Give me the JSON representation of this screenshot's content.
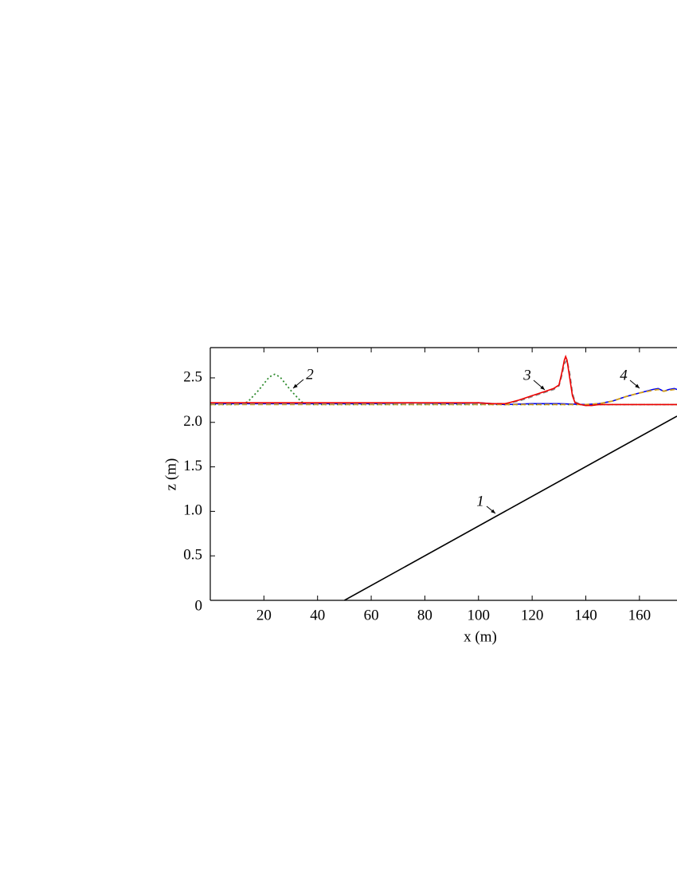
{
  "chart_data": {
    "type": "line",
    "xlabel": "x (m)",
    "ylabel": "z (m)",
    "xlim": [
      0,
      174
    ],
    "ylim": [
      0,
      2.84
    ],
    "xticks": [
      20,
      40,
      60,
      80,
      100,
      120,
      140,
      160
    ],
    "yticks": [
      0,
      0.5,
      {
        "value": 1,
        "label": "1.0"
      },
      1.5,
      {
        "value": 2,
        "label": "2.0"
      },
      2.5
    ],
    "annotations": [
      "1",
      "2",
      "3",
      "4"
    ],
    "series": [
      {
        "color": "#000000",
        "style": "solid",
        "x": [
          50,
          174
        ],
        "values": [
          0,
          2.07
        ]
      },
      {
        "color": "#2e8b2e",
        "style": "dotted",
        "x": [
          0,
          10,
          14,
          18,
          22,
          24,
          26,
          30,
          34,
          38,
          50,
          174
        ],
        "values": [
          2.2,
          2.2,
          2.23,
          2.36,
          2.51,
          2.54,
          2.51,
          2.36,
          2.23,
          2.2,
          2.2,
          2.2
        ]
      },
      {
        "color": "#0000ee",
        "style": "solid",
        "x": [
          0,
          20,
          40,
          60,
          75,
          90,
          100,
          110,
          120,
          130,
          140,
          145,
          150,
          155,
          160,
          165,
          167,
          169,
          171,
          173,
          174
        ],
        "values": [
          2.21,
          2.21,
          2.21,
          2.21,
          2.22,
          2.21,
          2.22,
          2.2,
          2.21,
          2.21,
          2.2,
          2.21,
          2.24,
          2.29,
          2.33,
          2.37,
          2.38,
          2.35,
          2.37,
          2.38,
          2.37
        ]
      },
      {
        "color": "#d4a017",
        "style": "dashed",
        "x": [
          0,
          40,
          80,
          120,
          140,
          145,
          150,
          155,
          160,
          165,
          167,
          169,
          171,
          173,
          174
        ],
        "values": [
          2.2,
          2.2,
          2.2,
          2.2,
          2.2,
          2.21,
          2.24,
          2.29,
          2.33,
          2.36,
          2.37,
          2.35,
          2.36,
          2.37,
          2.36
        ]
      },
      {
        "color": "#888888",
        "style": "dashed",
        "x": [
          0,
          40,
          80,
          100,
          110,
          115,
          120,
          125,
          128,
          130,
          131,
          132,
          133,
          134,
          135,
          136,
          138,
          140,
          142,
          145,
          174
        ],
        "values": [
          2.21,
          2.21,
          2.21,
          2.21,
          2.21,
          2.24,
          2.29,
          2.34,
          2.37,
          2.41,
          2.52,
          2.66,
          2.7,
          2.55,
          2.33,
          2.23,
          2.2,
          2.19,
          2.19,
          2.2,
          2.2
        ]
      },
      {
        "color": "#ee0000",
        "style": "solid",
        "x": [
          0,
          20,
          40,
          60,
          80,
          100,
          105,
          110,
          115,
          120,
          125,
          128,
          130,
          131,
          132,
          132.5,
          133,
          134,
          135,
          136,
          138,
          140,
          142,
          145,
          150,
          174
        ],
        "values": [
          2.22,
          2.22,
          2.22,
          2.22,
          2.22,
          2.22,
          2.21,
          2.21,
          2.25,
          2.3,
          2.35,
          2.38,
          2.42,
          2.55,
          2.7,
          2.74,
          2.7,
          2.5,
          2.3,
          2.22,
          2.2,
          2.19,
          2.19,
          2.2,
          2.2,
          2.2
        ]
      }
    ]
  }
}
